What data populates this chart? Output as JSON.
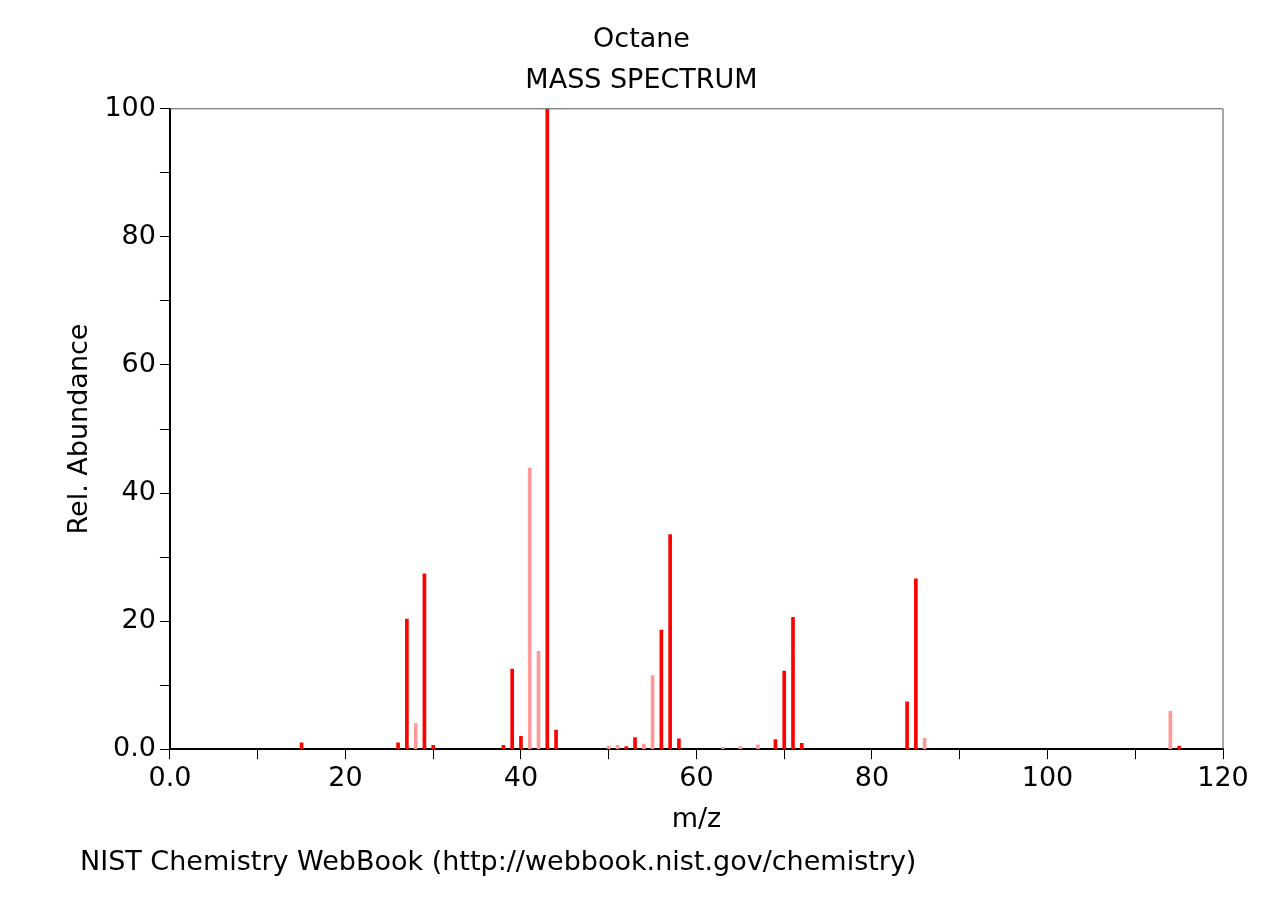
{
  "chart_data": {
    "type": "bar",
    "title": "Octane",
    "subtitle": "MASS SPECTRUM",
    "xlabel": "m/z",
    "ylabel": "Rel. Abundance",
    "annotations": [
      "NIST Chemistry WebBook (http://webbook.nist.gov/chemistry)"
    ],
    "x": [
      15,
      26,
      27,
      28,
      29,
      30,
      38,
      39,
      40,
      41,
      42,
      43,
      44,
      50,
      51,
      52,
      53,
      54,
      55,
      56,
      57,
      58,
      63,
      65,
      67,
      69,
      70,
      71,
      72,
      84,
      85,
      86,
      114,
      115
    ],
    "values": [
      1.0,
      1.0,
      20.3,
      4.0,
      27.4,
      0.6,
      0.6,
      12.5,
      2.0,
      43.9,
      15.3,
      100,
      3.0,
      0.5,
      0.6,
      0.4,
      1.8,
      0.8,
      11.5,
      18.6,
      33.5,
      1.6,
      0.3,
      0.4,
      0.7,
      1.5,
      12.2,
      20.6,
      0.9,
      7.4,
      26.6,
      1.7,
      5.9,
      0.5
    ],
    "colors": [
      "#ff0000",
      "#ff0000",
      "#ff0000",
      "#ff9999",
      "#ff0000",
      "#ff0000",
      "#ff0000",
      "#ff0000",
      "#ff0000",
      "#ff9999",
      "#ff9999",
      "#ff0000",
      "#ff0000",
      "#ff9999",
      "#ff9999",
      "#ff0000",
      "#ff0000",
      "#ff9999",
      "#ff9999",
      "#ff0000",
      "#ff0000",
      "#ff0000",
      "#ff9999",
      "#ff9999",
      "#ff9999",
      "#ff0000",
      "#ff0000",
      "#ff0000",
      "#ff0000",
      "#ff0000",
      "#ff0000",
      "#ff9999",
      "#ff9999",
      "#ff0000"
    ],
    "xlim": [
      0,
      120
    ],
    "xticks": [
      {
        "value": 0,
        "label": "0.0"
      },
      {
        "value": 10,
        "label": null
      },
      20,
      {
        "value": 30,
        "label": null
      },
      40,
      {
        "value": 50,
        "label": null
      },
      60,
      {
        "value": 70,
        "label": null
      },
      80,
      {
        "value": 90,
        "label": null
      },
      100,
      {
        "value": 110,
        "label": null
      },
      120
    ],
    "ylim": [
      0,
      100
    ],
    "yticks": [
      {
        "value": 0,
        "label": "0.0"
      },
      {
        "value": 10,
        "label": null
      },
      20,
      {
        "value": 30,
        "label": null
      },
      40,
      {
        "value": 50,
        "label": null
      },
      60,
      {
        "value": 70,
        "label": null
      },
      80,
      {
        "value": 90,
        "label": null
      },
      100
    ],
    "grid": false,
    "legend": false
  }
}
